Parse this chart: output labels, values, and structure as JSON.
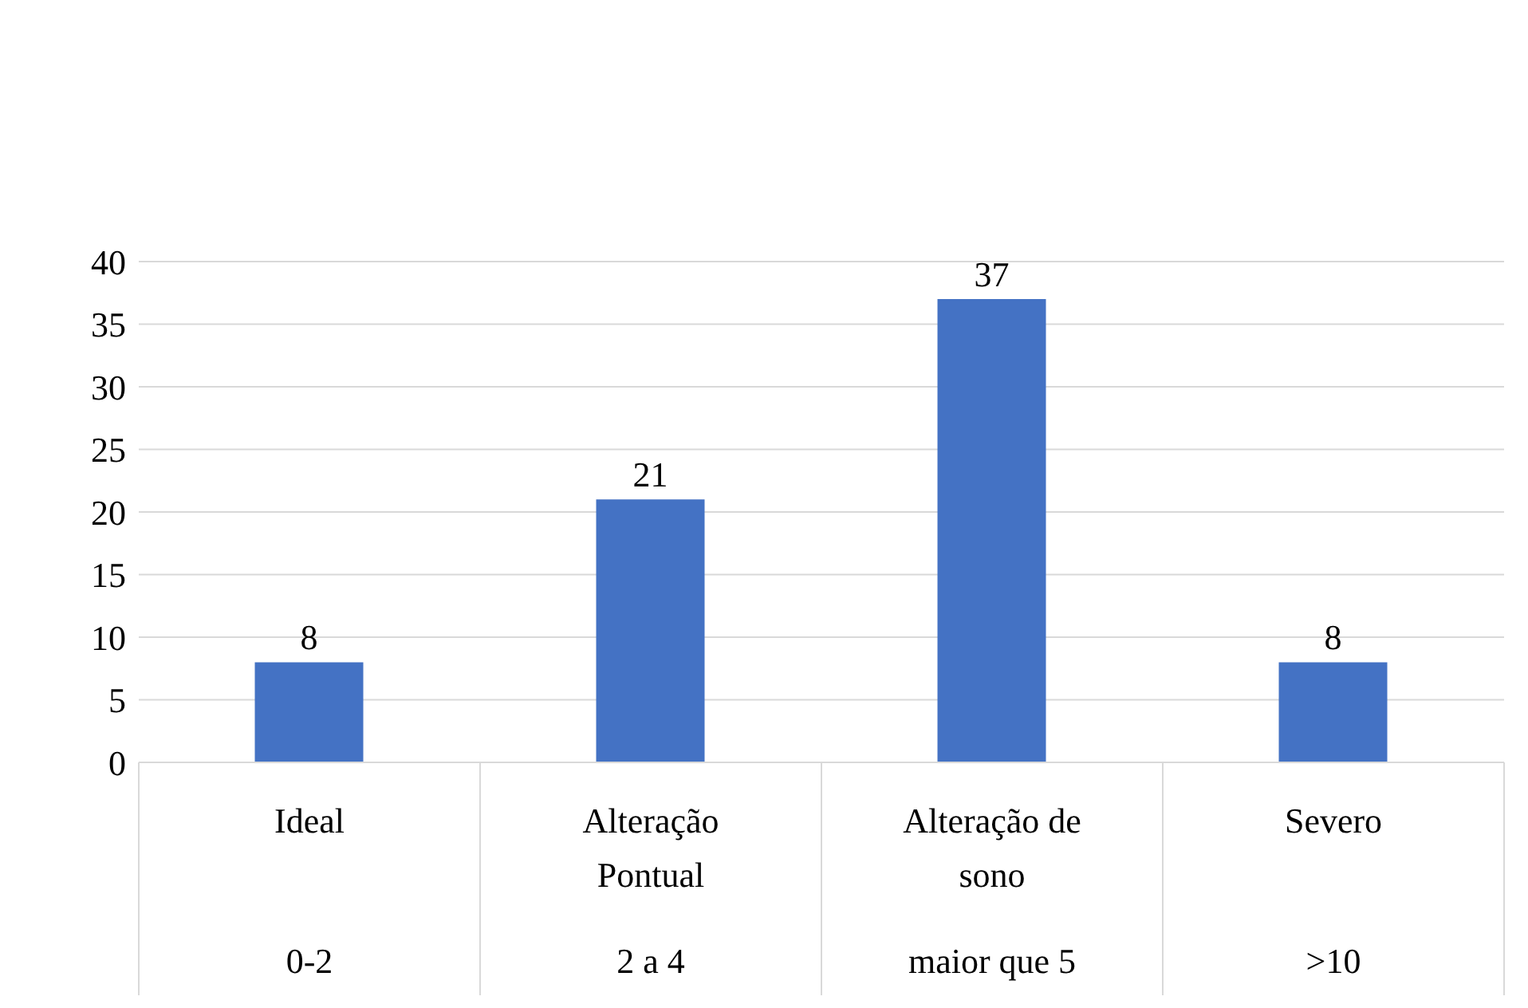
{
  "chart_data": {
    "type": "bar",
    "categories": [
      "Ideal\n0-2",
      "Alteração\nPontual\n2 a 4",
      "Alteração de\nsono\nmaior que 5",
      "Severo\n>10"
    ],
    "values": [
      8,
      21,
      37,
      8
    ],
    "color": "#4472c4",
    "ylim": [
      0,
      40
    ],
    "yticks": [
      0,
      5,
      10,
      15,
      20,
      25,
      30,
      35,
      40
    ],
    "grid": "y",
    "data_labels": true,
    "legend": false
  }
}
